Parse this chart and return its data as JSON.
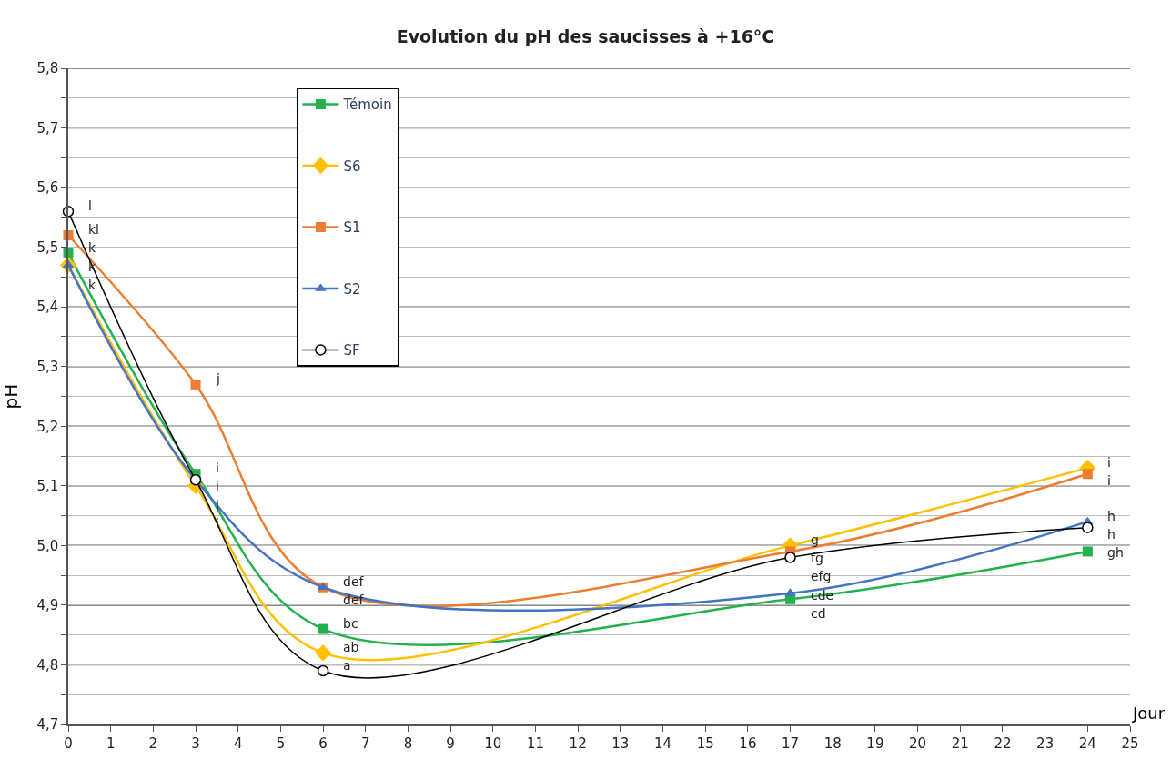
{
  "chart_data": {
    "type": "line",
    "title": "Evolution du pH des saucisses à +16°C",
    "xlabel": "Jour",
    "ylabel": "pH",
    "x": [
      0,
      3,
      6,
      17,
      24
    ],
    "series": [
      {
        "name": "Témoin",
        "color": "#22b14c",
        "marker": "square",
        "values": [
          5.49,
          5.12,
          4.86,
          4.91,
          4.99
        ]
      },
      {
        "name": "S6",
        "color": "#ffc000",
        "marker": "diamond",
        "values": [
          5.47,
          5.1,
          4.82,
          5.0,
          5.13
        ]
      },
      {
        "name": "S1",
        "color": "#ed7d31",
        "marker": "square",
        "values": [
          5.52,
          5.27,
          4.93,
          4.99,
          5.12
        ]
      },
      {
        "name": "S2",
        "color": "#4472c4",
        "marker": "triangle",
        "values": [
          5.47,
          5.11,
          4.93,
          4.92,
          5.04
        ]
      },
      {
        "name": "SF",
        "color": "#000000",
        "marker": "circle",
        "values": [
          5.56,
          5.11,
          4.79,
          4.98,
          5.03
        ]
      }
    ],
    "xlim": [
      0,
      25
    ],
    "xticks": [
      0,
      1,
      2,
      3,
      4,
      5,
      6,
      7,
      8,
      9,
      10,
      11,
      12,
      13,
      14,
      15,
      16,
      17,
      18,
      19,
      20,
      21,
      22,
      23,
      24,
      25
    ],
    "ylim": [
      4.7,
      5.8
    ],
    "yticks": [
      {
        "value": 4.7,
        "label": "4,7"
      },
      {
        "value": 4.75,
        "label": null
      },
      {
        "value": 4.8,
        "label": "4,8"
      },
      {
        "value": 4.85,
        "label": null
      },
      {
        "value": 4.9,
        "label": "4,9"
      },
      {
        "value": 4.95,
        "label": null
      },
      {
        "value": 5.0,
        "label": "5,0"
      },
      {
        "value": 5.05,
        "label": null
      },
      {
        "value": 5.1,
        "label": "5,1"
      },
      {
        "value": 5.15,
        "label": null
      },
      {
        "value": 5.2,
        "label": "5,2"
      },
      {
        "value": 5.25,
        "label": null
      },
      {
        "value": 5.3,
        "label": "5,3"
      },
      {
        "value": 5.35,
        "label": null
      },
      {
        "value": 5.4,
        "label": "5,4"
      },
      {
        "value": 5.45,
        "label": null
      },
      {
        "value": 5.5,
        "label": "5,5"
      },
      {
        "value": 5.55,
        "label": null
      },
      {
        "value": 5.6,
        "label": "5,6"
      },
      {
        "value": 5.65,
        "label": null
      },
      {
        "value": 5.7,
        "label": "5,7"
      },
      {
        "value": 5.75,
        "label": null
      },
      {
        "value": 5.8,
        "label": "5,8"
      }
    ],
    "grid": "y",
    "legend": "top left",
    "annotations": [
      {
        "text": "l",
        "x": 0,
        "y": 5.56
      },
      {
        "text": "kl",
        "x": 0,
        "y": 5.52
      },
      {
        "text": "k",
        "x": 0,
        "y": 5.49
      },
      {
        "text": "k",
        "x": 0,
        "y": 5.47
      },
      {
        "text": "k",
        "x": 0,
        "y": 5.47
      },
      {
        "text": "j",
        "x": 3,
        "y": 5.27
      },
      {
        "text": "i",
        "x": 3,
        "y": 5.12
      },
      {
        "text": "i",
        "x": 3,
        "y": 5.11
      },
      {
        "text": "i",
        "x": 3,
        "y": 5.11
      },
      {
        "text": "i",
        "x": 3,
        "y": 5.1
      },
      {
        "text": "def",
        "x": 6,
        "y": 4.93
      },
      {
        "text": "def",
        "x": 6,
        "y": 4.93
      },
      {
        "text": "bc",
        "x": 6,
        "y": 4.86
      },
      {
        "text": "ab",
        "x": 6,
        "y": 4.82
      },
      {
        "text": "a",
        "x": 6,
        "y": 4.79
      },
      {
        "text": "g",
        "x": 17,
        "y": 5.0
      },
      {
        "text": "fg",
        "x": 17,
        "y": 4.99
      },
      {
        "text": "efg",
        "x": 17,
        "y": 4.98
      },
      {
        "text": "cde",
        "x": 17,
        "y": 4.92
      },
      {
        "text": "cd",
        "x": 17,
        "y": 4.91
      },
      {
        "text": "i",
        "x": 24,
        "y": 5.13
      },
      {
        "text": "i",
        "x": 24,
        "y": 5.12
      },
      {
        "text": "h",
        "x": 24,
        "y": 5.04
      },
      {
        "text": "h",
        "x": 24,
        "y": 5.03
      },
      {
        "text": "gh",
        "x": 24,
        "y": 4.99
      }
    ]
  }
}
